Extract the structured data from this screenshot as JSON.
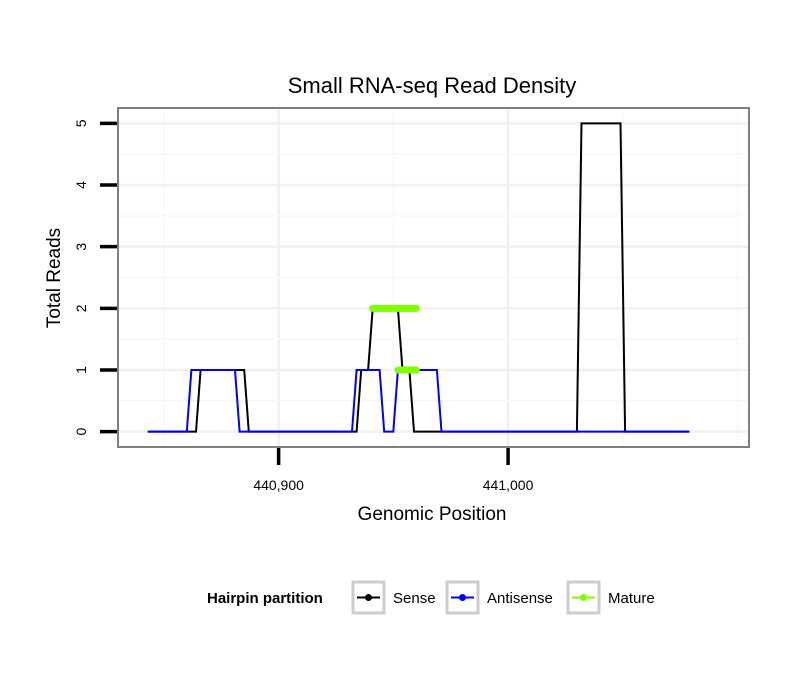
{
  "chart_data": {
    "type": "line",
    "title": "Small RNA-seq Read Density",
    "xlabel": "Genomic Position",
    "ylabel": "Total Reads",
    "xlim": [
      440830,
      441105
    ],
    "ylim": [
      -0.25,
      5.25
    ],
    "x_ticks": [
      {
        "value": 440900,
        "label": "440,900"
      },
      {
        "value": 441000,
        "label": "441,000"
      }
    ],
    "y_ticks": [
      {
        "value": 0,
        "label": "0"
      },
      {
        "value": 1,
        "label": "1"
      },
      {
        "value": 2,
        "label": "2"
      },
      {
        "value": 3,
        "label": "3"
      },
      {
        "value": 4,
        "label": "4"
      },
      {
        "value": 5,
        "label": "5"
      }
    ],
    "grid": true,
    "legend": {
      "title": "Hairpin partition",
      "placement": "bottom",
      "entries": [
        "Sense",
        "Antisense",
        "Mature"
      ]
    },
    "series": [
      {
        "name": "Sense",
        "color": "#000000",
        "line_width": 2,
        "x": [
          440843,
          440864,
          440866,
          440885,
          440887,
          440934,
          440936,
          440939,
          440941,
          440952,
          440954,
          440957,
          440959,
          441030,
          441032,
          441049,
          441051,
          441079
        ],
        "y": [
          0,
          0,
          1,
          1,
          0,
          0,
          1,
          1,
          2,
          2,
          1,
          1,
          0,
          0,
          5,
          5,
          0,
          0
        ]
      },
      {
        "name": "Antisense",
        "color": "#0000ff",
        "line_width": 2,
        "x": [
          440843,
          440860,
          440862,
          440881,
          440883,
          440932,
          440934,
          440944,
          440946,
          440950,
          440952,
          440969,
          440971,
          441029,
          441031,
          441051,
          441053,
          441079
        ],
        "y": [
          0,
          0,
          1,
          1,
          0,
          0,
          1,
          1,
          0,
          0,
          1,
          1,
          0,
          0,
          0,
          0,
          0,
          0
        ]
      },
      {
        "name": "Mature",
        "color": "#7fff00",
        "line_width": 7,
        "segments": [
          {
            "x": [
              440941,
              440960
            ],
            "y": [
              2,
              2
            ]
          },
          {
            "x": [
              440952,
              440960
            ],
            "y": [
              1,
              1
            ]
          }
        ]
      }
    ]
  }
}
